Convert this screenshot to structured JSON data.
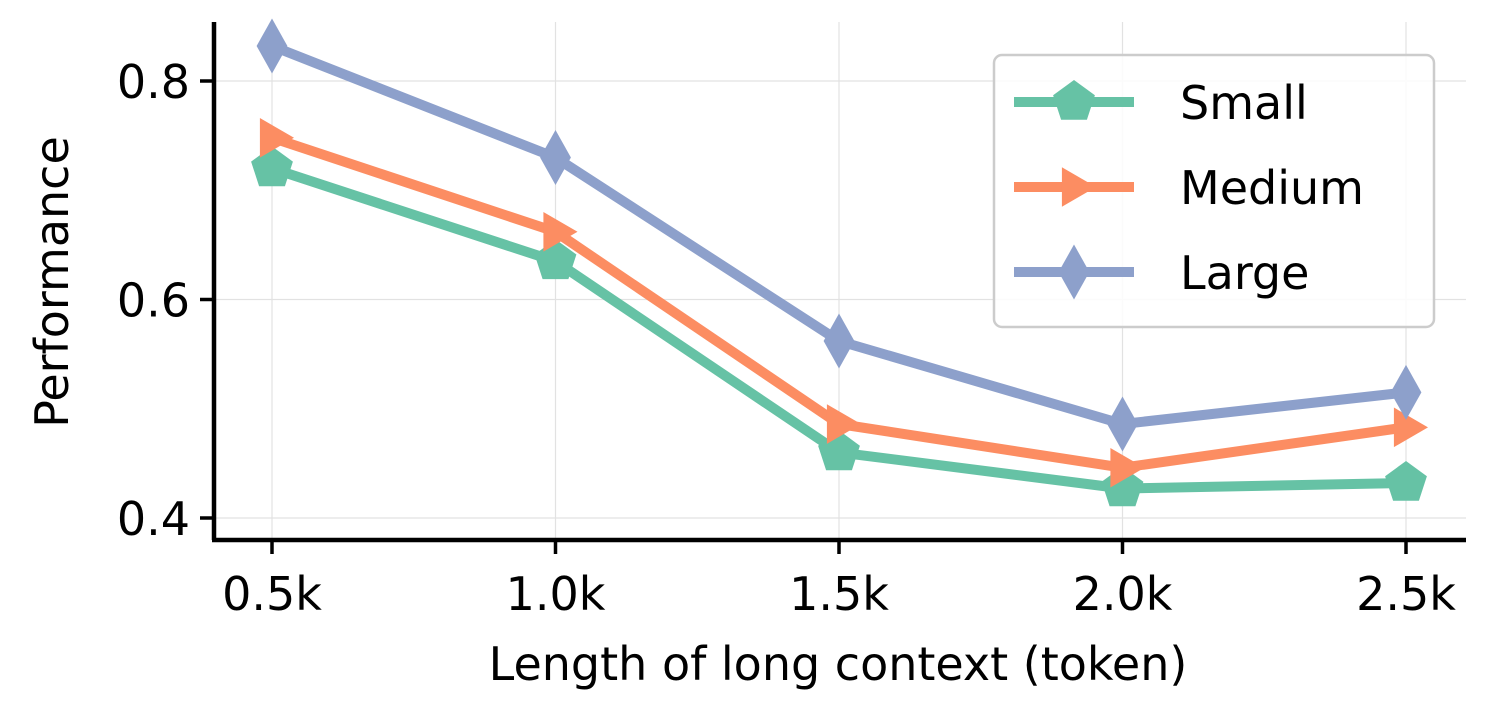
{
  "chart_data": {
    "type": "line",
    "x": [
      0.5,
      1.0,
      1.5,
      2.0,
      2.5
    ],
    "xticklabels": [
      "0.5k",
      "1.0k",
      "1.5k",
      "2.0k",
      "2.5k"
    ],
    "xlabel": "Length of long context (token)",
    "ylabel": "Performance",
    "yticks": [
      0.4,
      0.6,
      0.8
    ],
    "yticklabels": [
      "0.4",
      "0.6",
      "0.8"
    ],
    "xlim": [
      0.4,
      2.6
    ],
    "ylim": [
      0.38,
      0.85
    ],
    "grid": true,
    "legend_position": "top-right",
    "series": [
      {
        "name": "Small",
        "marker": "pentagon",
        "color": "#66c2a5",
        "values": [
          0.72,
          0.635,
          0.46,
          0.427,
          0.432
        ]
      },
      {
        "name": "Medium",
        "marker": "triangle-right",
        "color": "#fc8d62",
        "values": [
          0.748,
          0.662,
          0.486,
          0.446,
          0.483
        ]
      },
      {
        "name": "Large",
        "marker": "thin-diamond",
        "color": "#8da0cb",
        "values": [
          0.832,
          0.73,
          0.562,
          0.486,
          0.515
        ]
      }
    ]
  }
}
